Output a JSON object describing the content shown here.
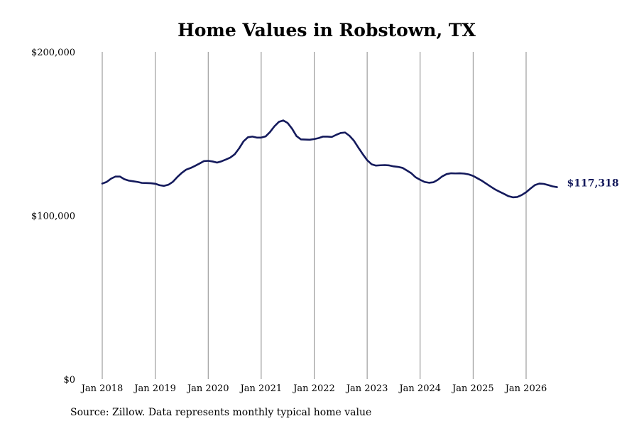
{
  "chart_data": {
    "type": "line",
    "title": "Home Values in Robstown, TX",
    "xlabel": "",
    "ylabel": "",
    "ylim": [
      0,
      200000
    ],
    "y_ticks": [
      {
        "value": 0,
        "label": "$0"
      },
      {
        "value": 100000,
        "label": "$100,000"
      },
      {
        "value": 200000,
        "label": "$200,000"
      }
    ],
    "x_ticks": [
      {
        "date": "2018-01",
        "label": "Jan 2018"
      },
      {
        "date": "2019-01",
        "label": "Jan 2019"
      },
      {
        "date": "2020-01",
        "label": "Jan 2020"
      },
      {
        "date": "2021-01",
        "label": "Jan 2021"
      },
      {
        "date": "2022-01",
        "label": "Jan 2022"
      },
      {
        "date": "2023-01",
        "label": "Jan 2023"
      },
      {
        "date": "2024-01",
        "label": "Jan 2024"
      },
      {
        "date": "2025-01",
        "label": "Jan 2025"
      },
      {
        "date": "2026-01",
        "label": "Jan 2026"
      }
    ],
    "vertical_grid": true,
    "horizontal_grid": false,
    "line_color": "#141a5c",
    "end_label": "$117,318",
    "series": [
      {
        "name": "",
        "x": [
          "2018-01",
          "2018-02",
          "2018-03",
          "2018-04",
          "2018-05",
          "2018-06",
          "2018-07",
          "2018-08",
          "2018-09",
          "2018-10",
          "2018-11",
          "2018-12",
          "2019-01",
          "2019-02",
          "2019-03",
          "2019-04",
          "2019-05",
          "2019-06",
          "2019-07",
          "2019-08",
          "2019-09",
          "2019-10",
          "2019-11",
          "2019-12",
          "2020-01",
          "2020-02",
          "2020-03",
          "2020-04",
          "2020-05",
          "2020-06",
          "2020-07",
          "2020-08",
          "2020-09",
          "2020-10",
          "2020-11",
          "2020-12",
          "2021-01",
          "2021-02",
          "2021-03",
          "2021-04",
          "2021-05",
          "2021-06",
          "2021-07",
          "2021-08",
          "2021-09",
          "2021-10",
          "2021-11",
          "2021-12",
          "2022-01",
          "2022-02",
          "2022-03",
          "2022-04",
          "2022-05",
          "2022-06",
          "2022-07",
          "2022-08",
          "2022-09",
          "2022-10",
          "2022-11",
          "2022-12",
          "2023-01",
          "2023-02",
          "2023-03",
          "2023-04",
          "2023-05",
          "2023-06",
          "2023-07",
          "2023-08",
          "2023-09",
          "2023-10",
          "2023-11",
          "2023-12",
          "2024-01",
          "2024-02",
          "2024-03",
          "2024-04",
          "2024-05",
          "2024-06",
          "2024-07",
          "2024-08",
          "2024-09",
          "2024-10",
          "2024-11",
          "2024-12",
          "2025-01",
          "2025-02",
          "2025-03",
          "2025-04",
          "2025-05",
          "2025-06",
          "2025-07",
          "2025-08",
          "2025-09",
          "2025-10",
          "2025-11",
          "2025-12",
          "2026-01",
          "2026-02",
          "2026-03",
          "2026-04",
          "2026-05",
          "2026-06",
          "2026-07",
          "2026-08"
        ],
        "values": [
          119500,
          120500,
          122500,
          123800,
          123800,
          122200,
          121300,
          120900,
          120500,
          119900,
          119800,
          119700,
          119400,
          118500,
          118100,
          118800,
          120600,
          123500,
          126000,
          128000,
          129000,
          130300,
          131700,
          133200,
          133400,
          133000,
          132300,
          133100,
          134200,
          135400,
          137400,
          141000,
          145300,
          147800,
          148200,
          147600,
          147600,
          148300,
          151000,
          154500,
          157200,
          158100,
          156500,
          153000,
          148500,
          146500,
          146400,
          146300,
          146700,
          147300,
          148200,
          148200,
          148000,
          149300,
          150400,
          150700,
          148700,
          145700,
          141500,
          137500,
          133800,
          131300,
          130500,
          130700,
          130800,
          130600,
          130000,
          129700,
          129100,
          127500,
          125800,
          123300,
          121800,
          120500,
          120000,
          120300,
          121800,
          123900,
          125300,
          125800,
          125700,
          125800,
          125600,
          125100,
          124200,
          122700,
          121200,
          119400,
          117600,
          115900,
          114500,
          113200,
          111800,
          111100,
          111300,
          112500,
          114200,
          116500,
          118600,
          119500,
          119300,
          118600,
          117800,
          117318
        ]
      }
    ]
  },
  "footer": {
    "source": "Source: Zillow. Data represents monthly typical home value"
  }
}
